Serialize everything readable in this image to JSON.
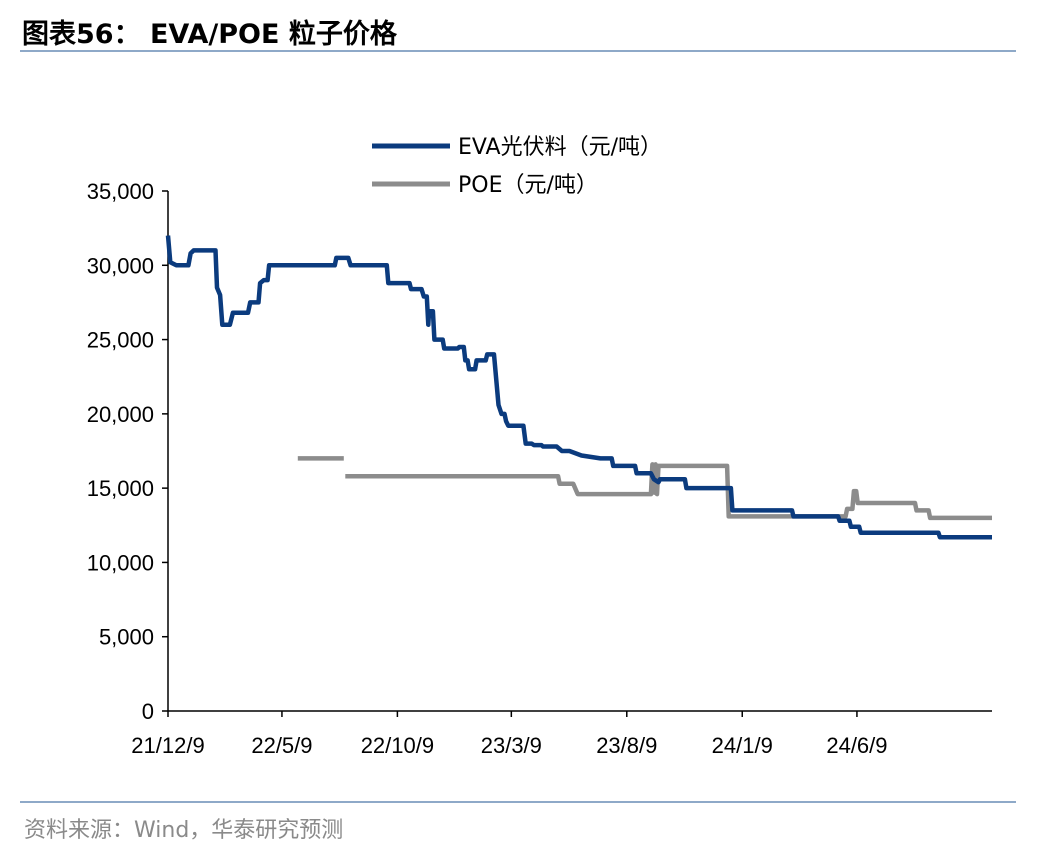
{
  "header": {
    "title": "图表56：  EVA/POE 粒子价格"
  },
  "footer": {
    "source": "资料来源：Wind，华泰研究预测"
  },
  "chart_data": {
    "type": "line",
    "xlim": [
      "2021-12-09",
      "2024-12-05"
    ],
    "ylim": [
      0,
      35000
    ],
    "y_ticks": [
      0,
      5000,
      10000,
      15000,
      20000,
      25000,
      30000,
      35000
    ],
    "y_tick_labels": [
      "0",
      "5,000",
      "10,000",
      "15,000",
      "20,000",
      "25,000",
      "30,000",
      "35,000"
    ],
    "x_ticks": [
      "2021-12-09",
      "2022-05-09",
      "2022-10-09",
      "2023-03-09",
      "2023-08-09",
      "2024-01-09",
      "2024-06-09"
    ],
    "x_tick_labels": [
      "21/12/9",
      "22/5/9",
      "22/10/9",
      "23/3/9",
      "23/8/9",
      "24/1/9",
      "24/6/9"
    ],
    "legend_position": "top-center",
    "grid": false,
    "series": [
      {
        "name": "EVA光伏料（元/吨）",
        "color": "#0b3b7e",
        "step": true,
        "points": [
          [
            "2021-12-09",
            32000
          ],
          [
            "2021-12-12",
            30200
          ],
          [
            "2021-12-20",
            30000
          ],
          [
            "2022-01-05",
            30000
          ],
          [
            "2022-01-08",
            30800
          ],
          [
            "2022-01-12",
            31000
          ],
          [
            "2022-02-10",
            31000
          ],
          [
            "2022-02-12",
            28500
          ],
          [
            "2022-02-16",
            28000
          ],
          [
            "2022-02-19",
            26000
          ],
          [
            "2022-03-01",
            26000
          ],
          [
            "2022-03-05",
            26800
          ],
          [
            "2022-03-25",
            26800
          ],
          [
            "2022-03-28",
            27500
          ],
          [
            "2022-04-08",
            27500
          ],
          [
            "2022-04-10",
            28800
          ],
          [
            "2022-04-15",
            29000
          ],
          [
            "2022-04-20",
            29000
          ],
          [
            "2022-04-22",
            30000
          ],
          [
            "2022-07-18",
            30000
          ],
          [
            "2022-07-20",
            30500
          ],
          [
            "2022-08-05",
            30500
          ],
          [
            "2022-08-08",
            30000
          ],
          [
            "2022-09-25",
            30000
          ],
          [
            "2022-09-27",
            28800
          ],
          [
            "2022-10-25",
            28800
          ],
          [
            "2022-10-27",
            28400
          ],
          [
            "2022-11-10",
            28400
          ],
          [
            "2022-11-13",
            27900
          ],
          [
            "2022-11-17",
            27900
          ],
          [
            "2022-11-19",
            26000
          ],
          [
            "2022-11-20",
            26900
          ],
          [
            "2022-11-25",
            26900
          ],
          [
            "2022-11-27",
            25000
          ],
          [
            "2022-12-08",
            25000
          ],
          [
            "2022-12-10",
            24400
          ],
          [
            "2022-12-28",
            24400
          ],
          [
            "2022-12-30",
            24500
          ],
          [
            "2023-01-05",
            24500
          ],
          [
            "2023-01-07",
            23600
          ],
          [
            "2023-01-10",
            23600
          ],
          [
            "2023-01-12",
            23000
          ],
          [
            "2023-01-20",
            23000
          ],
          [
            "2023-01-22",
            23600
          ],
          [
            "2023-02-03",
            23600
          ],
          [
            "2023-02-05",
            24000
          ],
          [
            "2023-02-14",
            24000
          ],
          [
            "2023-02-20",
            20600
          ],
          [
            "2023-02-24",
            20000
          ],
          [
            "2023-02-28",
            20000
          ],
          [
            "2023-03-02",
            19500
          ],
          [
            "2023-03-05",
            19200
          ],
          [
            "2023-03-25",
            19200
          ],
          [
            "2023-03-28",
            18000
          ],
          [
            "2023-04-05",
            18000
          ],
          [
            "2023-04-08",
            17900
          ],
          [
            "2023-04-18",
            17900
          ],
          [
            "2023-04-20",
            17800
          ],
          [
            "2023-05-08",
            17800
          ],
          [
            "2023-05-15",
            17500
          ],
          [
            "2023-05-25",
            17500
          ],
          [
            "2023-06-10",
            17200
          ],
          [
            "2023-07-05",
            17000
          ],
          [
            "2023-07-20",
            17000
          ],
          [
            "2023-07-22",
            16500
          ],
          [
            "2023-08-20",
            16500
          ],
          [
            "2023-08-22",
            16000
          ],
          [
            "2023-09-10",
            16000
          ],
          [
            "2023-09-14",
            15600
          ],
          [
            "2023-09-20",
            15400
          ],
          [
            "2023-09-22",
            15600
          ],
          [
            "2023-10-25",
            15600
          ],
          [
            "2023-10-27",
            15000
          ],
          [
            "2023-12-25",
            15000
          ],
          [
            "2023-12-27",
            13500
          ],
          [
            "2024-03-15",
            13500
          ],
          [
            "2024-03-17",
            13100
          ],
          [
            "2024-05-15",
            13100
          ],
          [
            "2024-05-17",
            12800
          ],
          [
            "2024-05-30",
            12800
          ],
          [
            "2024-06-01",
            12400
          ],
          [
            "2024-06-12",
            12400
          ],
          [
            "2024-06-14",
            12000
          ],
          [
            "2024-09-25",
            12000
          ],
          [
            "2024-09-27",
            11700
          ],
          [
            "2024-12-05",
            11700
          ]
        ]
      },
      {
        "name": "POE（元/吨）",
        "color": "#8c8c8c",
        "step": true,
        "segments": [
          [
            [
              "2022-05-30",
              17000
            ],
            [
              "2022-07-30",
              17000
            ]
          ],
          [
            [
              "2022-08-01",
              15800
            ],
            [
              "2023-05-10",
              15800
            ],
            [
              "2023-05-12",
              15300
            ],
            [
              "2023-05-30",
              15300
            ],
            [
              "2023-06-05",
              14600
            ],
            [
              "2023-09-10",
              14600
            ],
            [
              "2023-09-12",
              16600
            ],
            [
              "2023-09-14",
              14700
            ],
            [
              "2023-09-16",
              16600
            ],
            [
              "2023-09-18",
              14600
            ],
            [
              "2023-09-20",
              16500
            ],
            [
              "2023-12-20",
              16500
            ],
            [
              "2023-12-22",
              13100
            ],
            [
              "2024-05-25",
              13100
            ],
            [
              "2024-05-27",
              13600
            ],
            [
              "2024-06-03",
              13600
            ],
            [
              "2024-06-05",
              14800
            ],
            [
              "2024-06-08",
              14800
            ],
            [
              "2024-06-10",
              14000
            ],
            [
              "2024-08-25",
              14000
            ],
            [
              "2024-08-27",
              13500
            ],
            [
              "2024-09-12",
              13500
            ],
            [
              "2024-09-14",
              13000
            ],
            [
              "2024-12-05",
              13000
            ]
          ]
        ]
      }
    ]
  }
}
